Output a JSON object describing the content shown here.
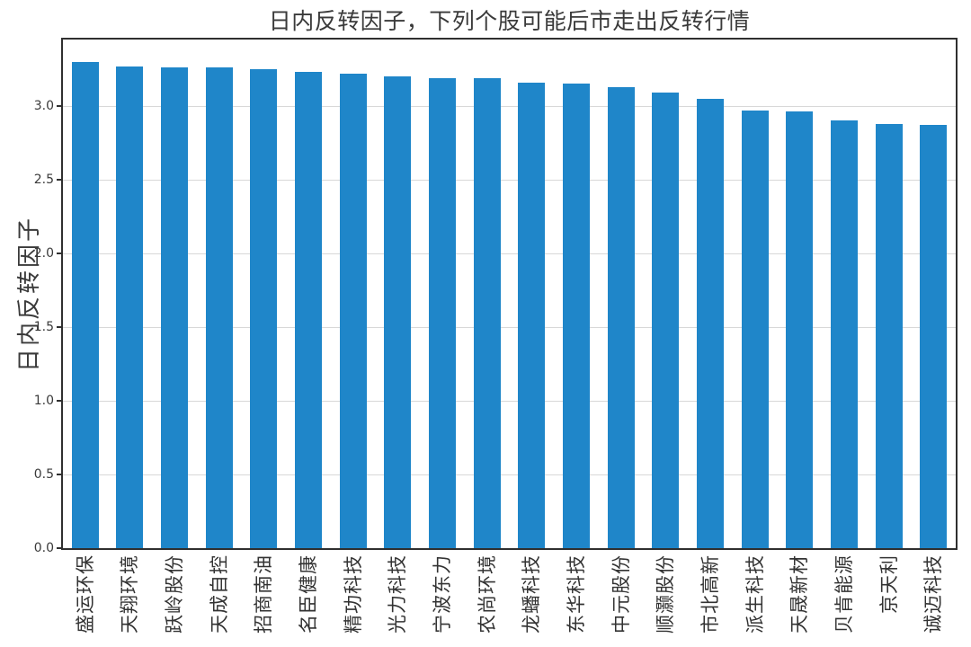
{
  "figure": {
    "background": "#ffffff"
  },
  "chart_data": {
    "type": "bar",
    "title": "日内反转因子，下列个股可能后市走出反转行情",
    "ylabel": "日内反转因子",
    "xlabel": "",
    "categories": [
      "盛运环保",
      "天翔环境",
      "跃岭股份",
      "天成自控",
      "招商南油",
      "名臣健康",
      "精功科技",
      "光力科技",
      "宁波东力",
      "农尚环境",
      "龙蟠科技",
      "东华科技",
      "中元股份",
      "顺灏股份",
      "市北高新",
      "派生科技",
      "天晟新材",
      "贝肯能源",
      "京天利",
      "诚迈科技"
    ],
    "values": [
      3.3,
      3.27,
      3.26,
      3.26,
      3.25,
      3.23,
      3.22,
      3.2,
      3.19,
      3.19,
      3.16,
      3.15,
      3.13,
      3.09,
      3.05,
      2.97,
      2.96,
      2.9,
      2.88,
      2.87
    ],
    "yticks": [
      0.0,
      0.5,
      1.0,
      1.5,
      2.0,
      2.5,
      3.0
    ],
    "ytick_labels": [
      "0.0",
      "0.5",
      "1.0",
      "1.5",
      "2.0",
      "2.5",
      "3.0"
    ],
    "ylim": [
      0,
      3.45
    ],
    "grid": true,
    "legend": "none",
    "bar_color": "#1f86c9",
    "grid_color": "#d8d8d8",
    "spine_color": "#2f2f2f",
    "text_color": "#3a3a3a"
  }
}
